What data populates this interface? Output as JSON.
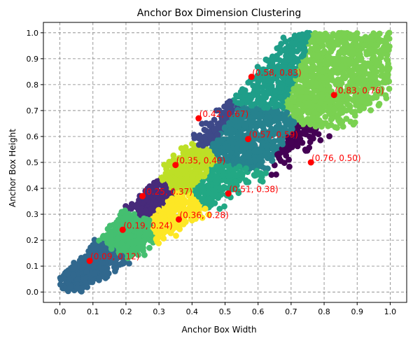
{
  "chart_data": {
    "type": "scatter",
    "title": "Anchor Box Dimension Clustering",
    "xlabel": "Anchor Box Width",
    "ylabel": "Anchor Box Height",
    "xlim": [
      -0.05,
      1.05
    ],
    "ylim": [
      -0.04,
      1.04
    ],
    "xticks": [
      "0.0",
      "0.1",
      "0.2",
      "0.3",
      "0.4",
      "0.5",
      "0.6",
      "0.7",
      "0.8",
      "0.9",
      "1.0"
    ],
    "yticks": [
      "0.0",
      "0.1",
      "0.2",
      "0.3",
      "0.4",
      "0.5",
      "0.6",
      "0.7",
      "0.8",
      "0.9",
      "1.0"
    ],
    "grid": true,
    "grid_style": "dashed",
    "centroid_color": "#ff0000",
    "clusters": [
      {
        "center": [
          0.09,
          0.12
        ],
        "label": "(0.09, 0.12)",
        "color": "#31688e"
      },
      {
        "center": [
          0.19,
          0.24
        ],
        "label": "(0.19, 0.24)",
        "color": "#44bf70"
      },
      {
        "center": [
          0.25,
          0.37
        ],
        "label": "(0.25, 0.37)",
        "color": "#472a7a"
      },
      {
        "center": [
          0.36,
          0.28
        ],
        "label": "(0.36, 0.28)",
        "color": "#fde725"
      },
      {
        "center": [
          0.35,
          0.49
        ],
        "label": "(0.35, 0.49)",
        "color": "#bddf26"
      },
      {
        "center": [
          0.51,
          0.38
        ],
        "label": "(0.51, 0.38)",
        "color": "#22a884"
      },
      {
        "center": [
          0.42,
          0.67
        ],
        "label": "(0.42, 0.67)",
        "color": "#3e4989"
      },
      {
        "center": [
          0.57,
          0.59
        ],
        "label": "(0.57, 0.59)",
        "color": "#26828e"
      },
      {
        "center": [
          0.58,
          0.83
        ],
        "label": "(0.58, 0.83)",
        "color": "#1f9e89"
      },
      {
        "center": [
          0.76,
          0.5
        ],
        "label": "(0.76, 0.50)",
        "color": "#440154"
      },
      {
        "center": [
          0.83,
          0.76
        ],
        "label": "(0.83, 0.76)",
        "color": "#7ad151"
      }
    ]
  }
}
